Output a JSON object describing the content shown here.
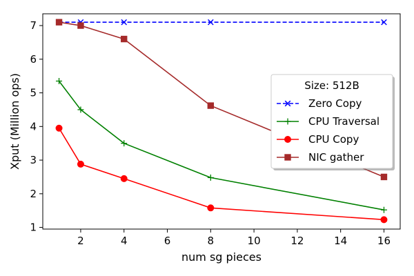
{
  "chart_data": {
    "type": "line",
    "title": "",
    "xlabel": "num sg pieces",
    "ylabel": "Xput (Million ops)",
    "xlim": [
      0.25,
      16.75
    ],
    "ylim": [
      0.95,
      7.35
    ],
    "xticks": [
      2,
      4,
      6,
      8,
      10,
      12,
      14,
      16
    ],
    "yticks": [
      1,
      2,
      3,
      4,
      5,
      6,
      7
    ],
    "legend": {
      "title": "Size: 512B",
      "placement": "center-right"
    },
    "x": [
      1,
      2,
      4,
      8,
      16
    ],
    "series": [
      {
        "name": "Zero Copy",
        "color": "#0000ff",
        "linestyle": "dashed",
        "marker": "x",
        "values": [
          7.1,
          7.1,
          7.1,
          7.1,
          7.1
        ]
      },
      {
        "name": "CPU Traversal",
        "color": "#008000",
        "linestyle": "solid",
        "marker": "plus",
        "values": [
          5.35,
          4.5,
          3.5,
          2.48,
          1.52
        ]
      },
      {
        "name": "CPU Copy",
        "color": "#ff0000",
        "linestyle": "solid",
        "marker": "circle",
        "values": [
          3.95,
          2.88,
          2.45,
          1.58,
          1.23
        ]
      },
      {
        "name": "NIC gather",
        "color": "#a52a2a",
        "linestyle": "solid",
        "marker": "square",
        "values": [
          7.1,
          7.0,
          6.6,
          4.62,
          2.5
        ]
      }
    ]
  }
}
